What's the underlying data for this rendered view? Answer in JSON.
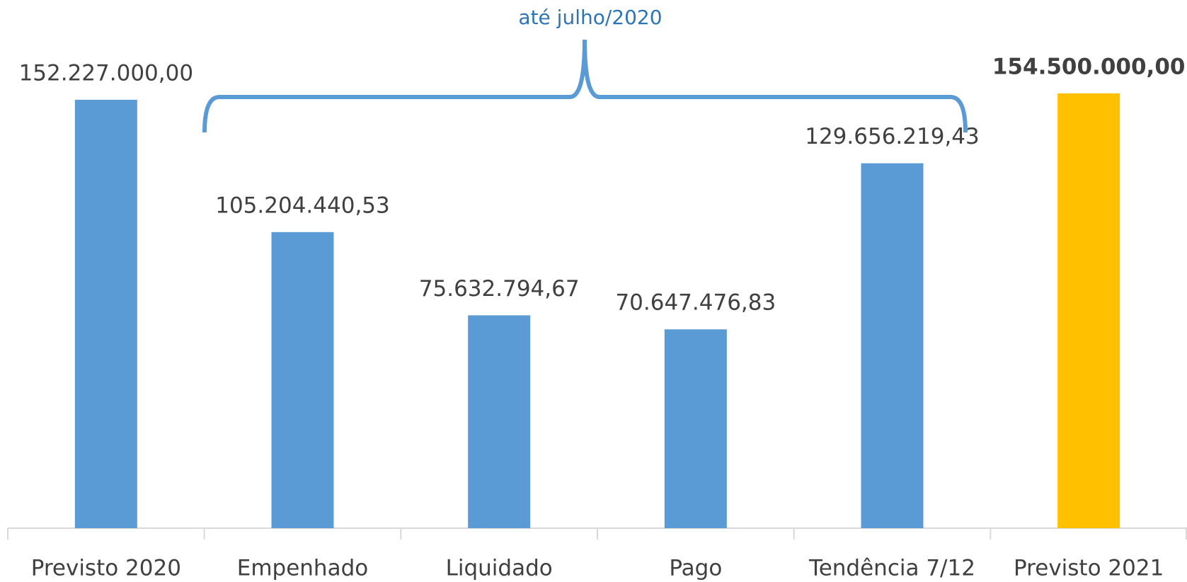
{
  "chart_data": {
    "type": "bar",
    "annotation": "até julho/2020",
    "categories": [
      "Previsto 2020",
      "Empenhado",
      "Liquidado",
      "Pago",
      "Tendência 7/12",
      "Previsto 2021"
    ],
    "values": [
      152227000,
      105204440.53,
      75632794.67,
      70647476.83,
      129656219.43,
      154500000
    ],
    "value_labels": [
      "152.227.000,00",
      "105.204.440,53",
      "75.632.794,67",
      "70.647.476,83",
      "129.656.219,43",
      "154.500.000,00"
    ],
    "colors": [
      "#5b9bd5",
      "#5b9bd5",
      "#5b9bd5",
      "#5b9bd5",
      "#5b9bd5",
      "#ffc000"
    ],
    "ylim": [
      0,
      160000000
    ]
  }
}
